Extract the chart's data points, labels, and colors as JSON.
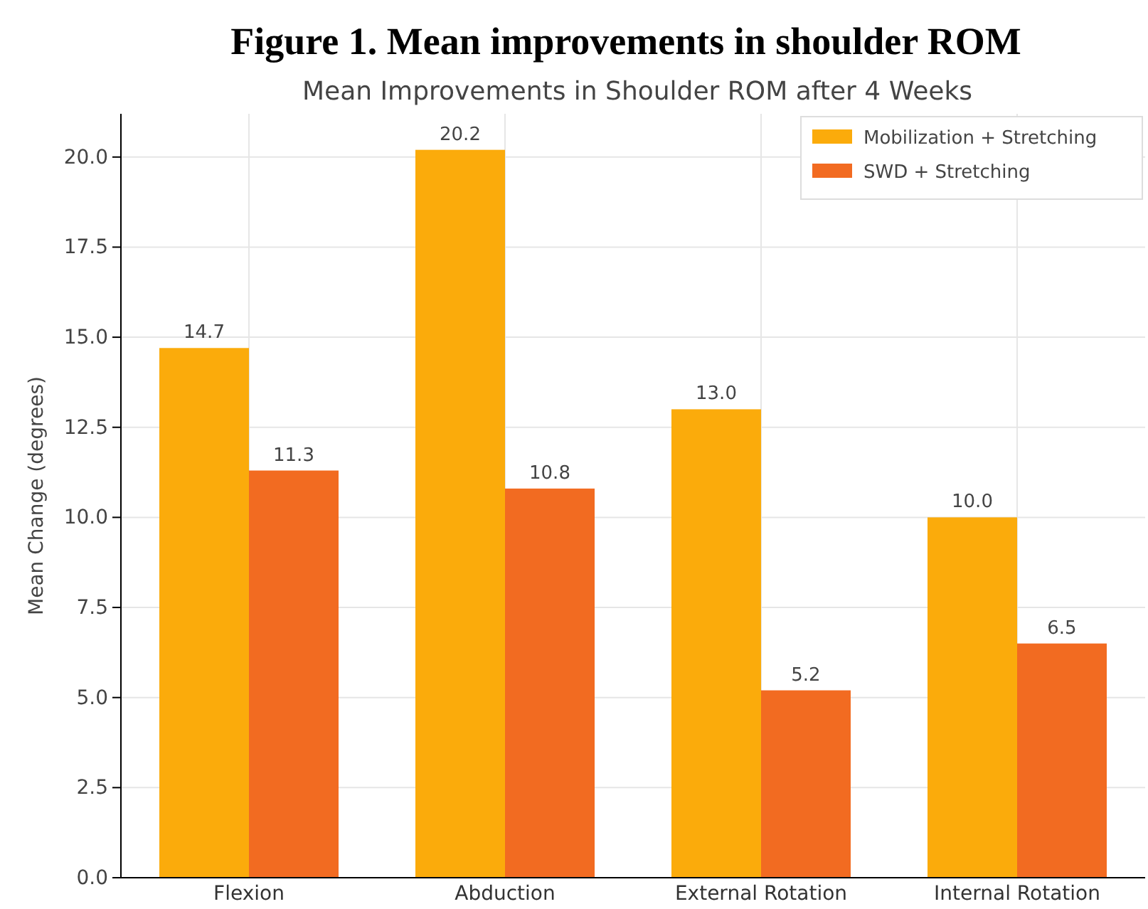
{
  "chart_data": {
    "type": "bar",
    "title": "Figure 1. Mean improvements in shoulder ROM",
    "subtitle": "Mean Improvements in Shoulder ROM after 4 Weeks",
    "ylabel": "Mean Change (degrees)",
    "categories": [
      "Flexion",
      "Abduction",
      "External Rotation",
      "Internal Rotation"
    ],
    "series": [
      {
        "name": "Mobilization + Stretching",
        "color": "#fbab0b",
        "values": [
          14.7,
          20.2,
          13.0,
          10.0
        ],
        "value_labels": [
          "14.7",
          "20.2",
          "13.0",
          "10.0"
        ]
      },
      {
        "name": "SWD + Stretching",
        "color": "#f26b21",
        "values": [
          11.3,
          10.8,
          5.2,
          6.5
        ],
        "value_labels": [
          "11.3",
          "10.8",
          "5.2",
          "6.5"
        ]
      }
    ],
    "ylim": [
      0,
      21.2
    ],
    "yticks": [
      {
        "value": 0,
        "label": "0.0"
      },
      {
        "value": 2.5,
        "label": "2.5"
      },
      {
        "value": 5,
        "label": "5.0"
      },
      {
        "value": 7.5,
        "label": "7.5"
      },
      {
        "value": 10,
        "label": "10.0"
      },
      {
        "value": 12.5,
        "label": "12.5"
      },
      {
        "value": 15,
        "label": "15.0"
      },
      {
        "value": 17.5,
        "label": "17.5"
      },
      {
        "value": 20,
        "label": "20.0"
      }
    ],
    "grid": true,
    "legend": "top right"
  }
}
